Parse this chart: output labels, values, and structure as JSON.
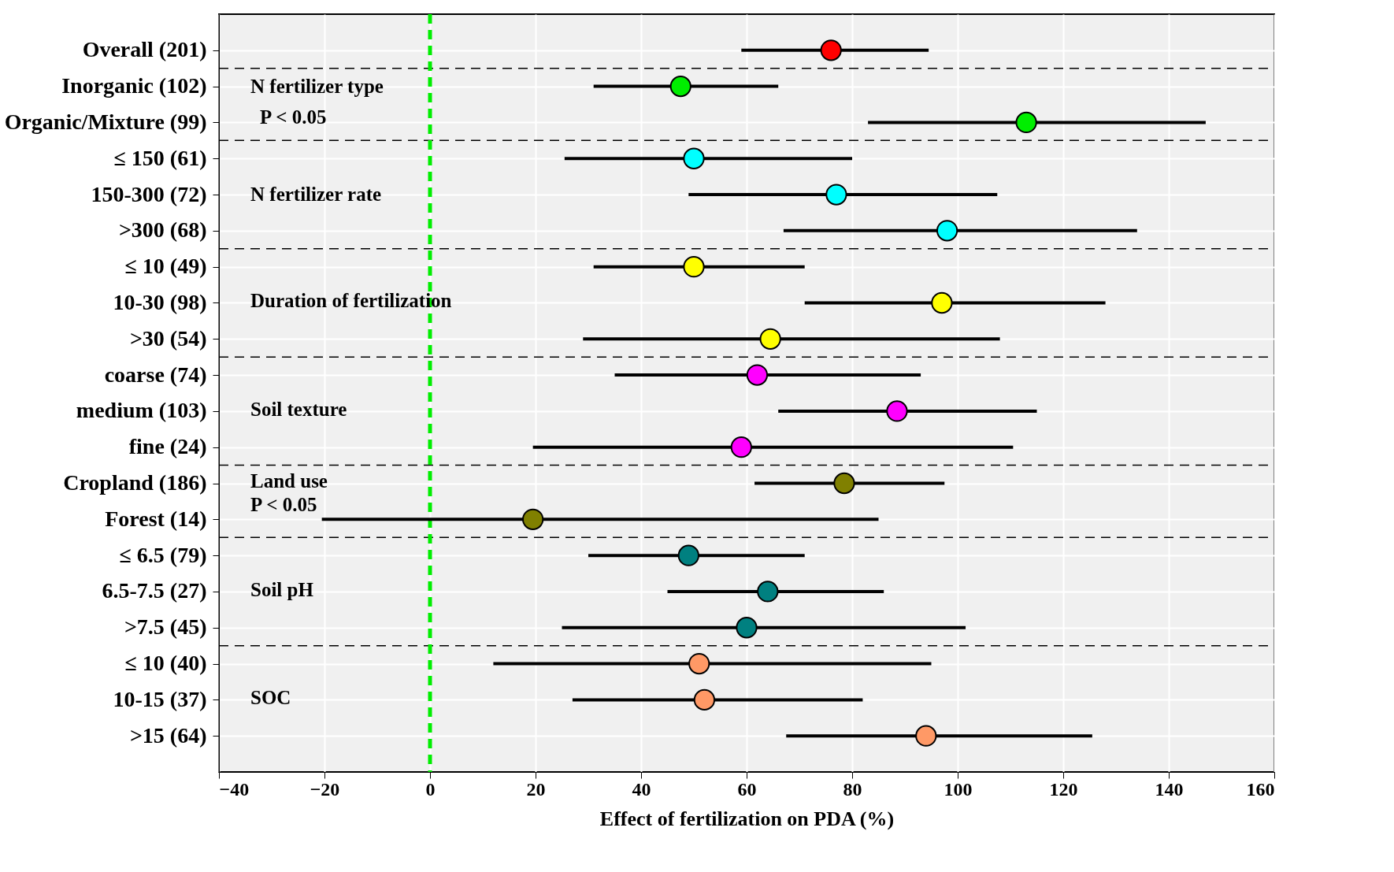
{
  "chart_data": {
    "type": "scatter",
    "orientation": "horizontal",
    "xlabel": "Effect of fertilization on PDA (%)",
    "categories": [
      "Overall (201)",
      "Inorganic (102)",
      "Organic/Mixture (99)",
      "≤ 150 (61)",
      "150-300 (72)",
      ">300 (68)",
      "≤ 10 (49)",
      "10-30 (98)",
      ">30 (54)",
      "coarse (74)",
      "medium (103)",
      "fine (24)",
      "Cropland (186)",
      "Forest (14)",
      "≤ 6.5 (79)",
      "6.5-7.5 (27)",
      ">7.5 (45)",
      "≤ 10 (40)",
      "10-15 (37)",
      ">15 (64)"
    ],
    "values": [
      76,
      47.5,
      113,
      50,
      77,
      98,
      50,
      97,
      64.5,
      62,
      88.5,
      59,
      78.5,
      19.5,
      49,
      64,
      60,
      51,
      52,
      94
    ],
    "errors": [
      [
        59,
        94.5
      ],
      [
        31,
        66
      ],
      [
        83,
        147
      ],
      [
        25.5,
        80
      ],
      [
        49,
        107.5
      ],
      [
        67,
        134
      ],
      [
        31,
        71
      ],
      [
        71,
        128
      ],
      [
        29,
        108
      ],
      [
        35,
        93
      ],
      [
        66,
        115
      ],
      [
        19.5,
        110.5
      ],
      [
        61.5,
        97.5
      ],
      [
        -20.5,
        85
      ],
      [
        30,
        71
      ],
      [
        45,
        86
      ],
      [
        25,
        101.5
      ],
      [
        12,
        95
      ],
      [
        27,
        82
      ],
      [
        67.5,
        125.5
      ]
    ],
    "colors": [
      "#ff0000",
      "#00ee00",
      "#00ee00",
      "#00ffff",
      "#00ffff",
      "#00ffff",
      "#ffff00",
      "#ffff00",
      "#ffff00",
      "#ff00ff",
      "#ff00ff",
      "#ff00ff",
      "#808000",
      "#808000",
      "#008080",
      "#008080",
      "#008080",
      "#ff9966",
      "#ff9966",
      "#ff9966"
    ],
    "xlim": [
      -40,
      160
    ],
    "xticks": [
      -40,
      -20,
      0,
      20,
      40,
      60,
      80,
      100,
      120,
      140,
      160
    ],
    "ref_lines": [
      {
        "axis": "x",
        "value": 0,
        "color": "#00ee00",
        "line_style": "dashed"
      }
    ],
    "annotations": [
      "N fertilizer type",
      "P < 0.05",
      "N fertilizer rate",
      "Duration of fertilization",
      "Soil texture",
      "Land use",
      "P < 0.05",
      "Soil pH",
      "SOC"
    ],
    "grid": true,
    "marker": "circle"
  }
}
